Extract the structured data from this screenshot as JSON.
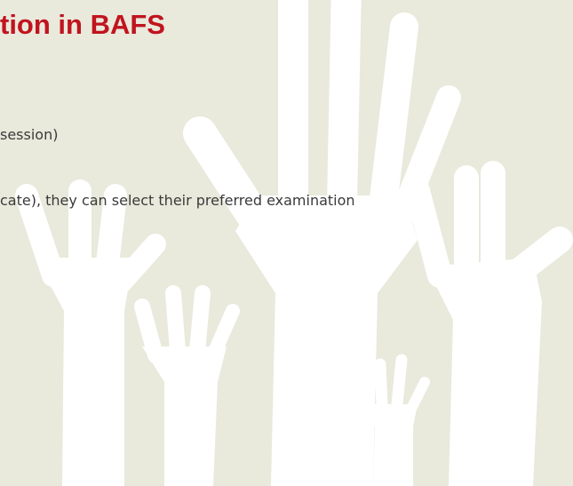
{
  "header": {
    "title": "tion in BAFS"
  },
  "body": {
    "lines": [
      "session)",
      "cate), they can select their preferred examination"
    ]
  }
}
